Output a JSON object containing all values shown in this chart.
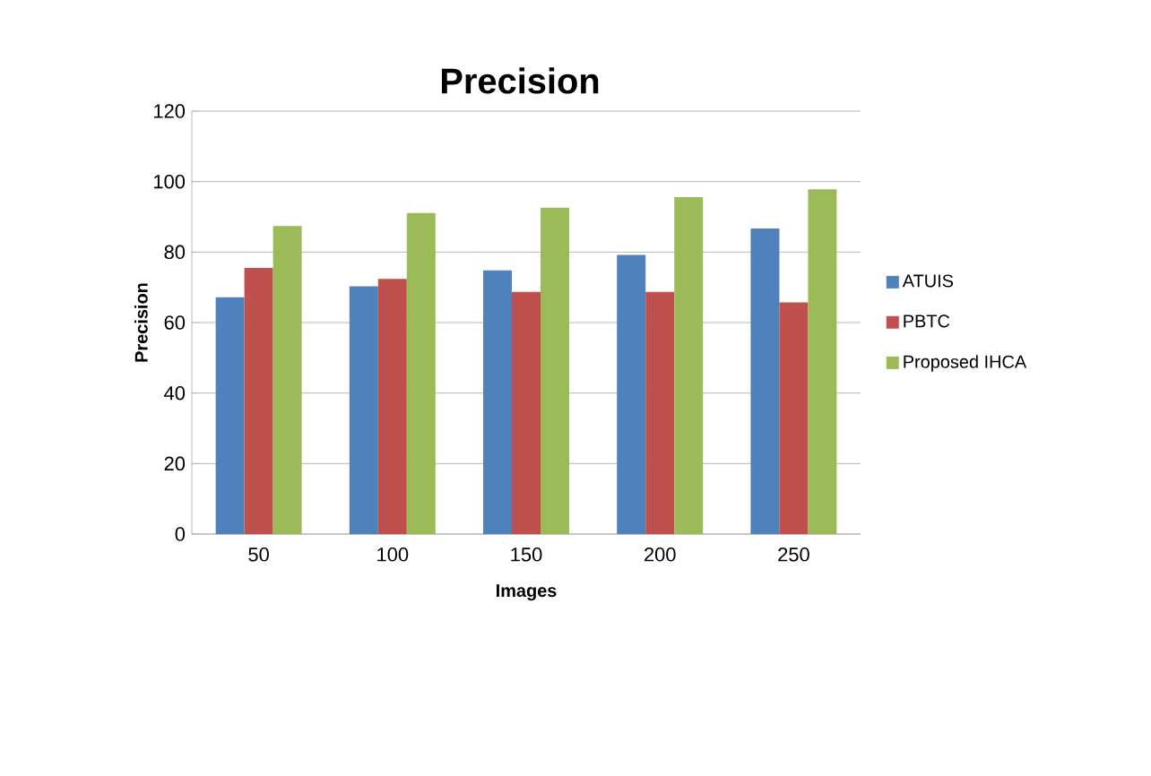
{
  "chart_data": {
    "type": "bar",
    "title": "Precision",
    "xlabel": "Images",
    "ylabel": "Precision",
    "categories": [
      "50",
      "100",
      "150",
      "200",
      "250"
    ],
    "series": [
      {
        "name": "ATUIS",
        "color": "#4f81bd",
        "values": [
          67.2,
          70.3,
          74.8,
          79.2,
          86.7
        ]
      },
      {
        "name": "PBTC",
        "color": "#c0504d",
        "values": [
          75.5,
          72.4,
          68.7,
          68.7,
          65.7
        ]
      },
      {
        "name": "Proposed IHCA",
        "color": "#9bbb59",
        "values": [
          87.4,
          91.1,
          92.6,
          95.6,
          97.8
        ]
      }
    ],
    "ylim": [
      0,
      120
    ],
    "yticks": [
      0,
      20,
      40,
      60,
      80,
      100,
      120
    ],
    "grid": "y",
    "legend": "right"
  }
}
